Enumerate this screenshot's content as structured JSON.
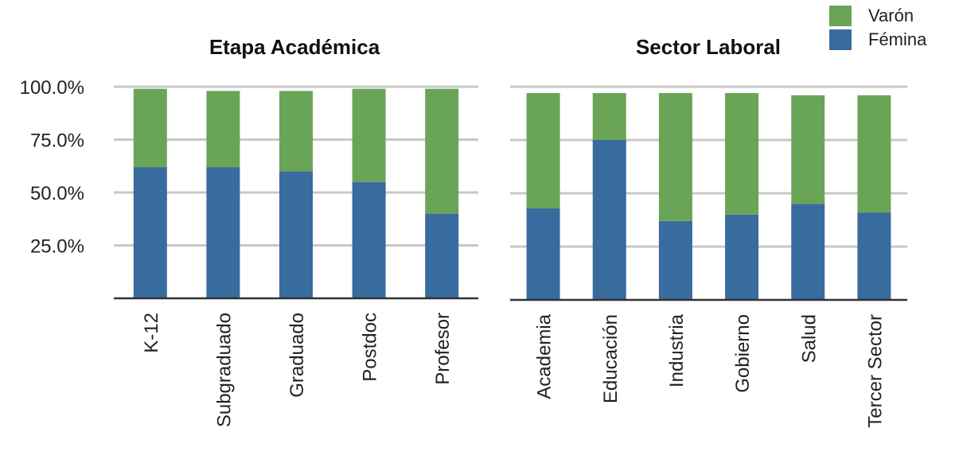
{
  "colors": {
    "varon": "#6aa456",
    "femina": "#386b9e"
  },
  "legend": [
    {
      "label": "Varón",
      "color": "#6aa456"
    },
    {
      "label": "Fémina",
      "color": "#386b9e"
    }
  ],
  "y_ticks": [
    "100.0%",
    "75.0%",
    "50.0%",
    "25.0%"
  ],
  "chart_data": [
    {
      "type": "bar",
      "stacked": true,
      "title": "Etapa Académica",
      "categories": [
        "K-12",
        "Subgraduado",
        "Graduado",
        "Postdoc",
        "Profesor"
      ],
      "series": [
        {
          "name": "Fémina",
          "values": [
            62,
            62,
            60,
            55,
            40
          ]
        },
        {
          "name": "Varón",
          "values": [
            37,
            36,
            38,
            44,
            59
          ]
        }
      ],
      "ylim": [
        0,
        100
      ],
      "grid": true,
      "legend_position": "top-right"
    },
    {
      "type": "bar",
      "stacked": true,
      "title": "Sector Laboral",
      "categories": [
        "Academia",
        "Educación",
        "Industria",
        "Gobierno",
        "Salud",
        "Tercer Sector"
      ],
      "series": [
        {
          "name": "Fémina",
          "values": [
            43,
            75,
            37,
            40,
            45,
            41
          ]
        },
        {
          "name": "Varón",
          "values": [
            54,
            22,
            60,
            57,
            51,
            55
          ]
        }
      ],
      "ylim": [
        0,
        100
      ],
      "grid": true
    }
  ]
}
